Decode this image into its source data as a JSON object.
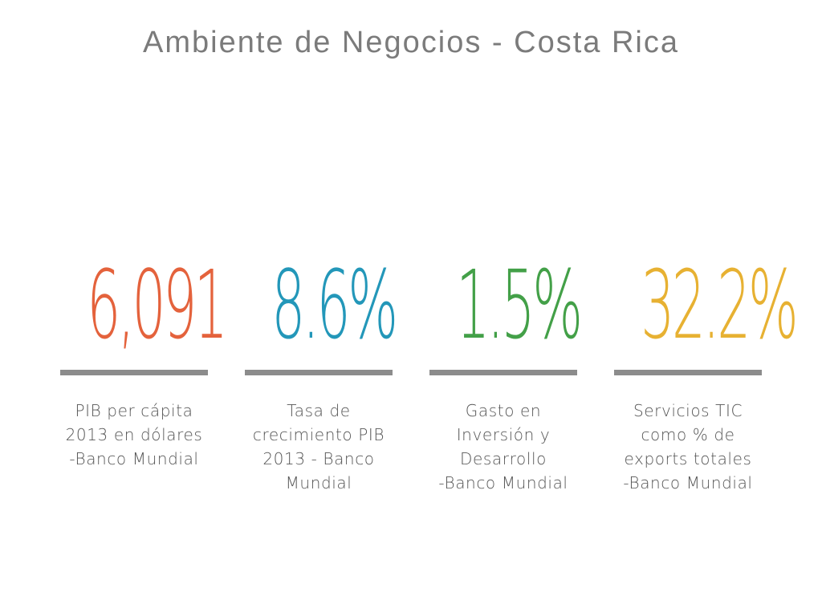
{
  "title": "Ambiente de Negocios - Costa Rica",
  "stats": [
    {
      "value": "6,091",
      "color": "#e4623c",
      "label_lines": [
        "PIB per cápita",
        "2013 en dólares",
        "-Banco Mundial"
      ]
    },
    {
      "value": "8.6%",
      "color": "#2397b9",
      "label_lines": [
        "Tasa de",
        "crecimiento PIB",
        "2013 - Banco",
        "Mundial"
      ]
    },
    {
      "value": "1.5%",
      "color": "#43a048",
      "label_lines": [
        "Gasto en",
        "Inversión y",
        "Desarrollo",
        "-Banco Mundial"
      ]
    },
    {
      "value": "32.2%",
      "color": "#e7b132",
      "label_lines": [
        "Servicios TIC",
        "como % de",
        "exports totales",
        "-Banco Mundial"
      ]
    }
  ]
}
